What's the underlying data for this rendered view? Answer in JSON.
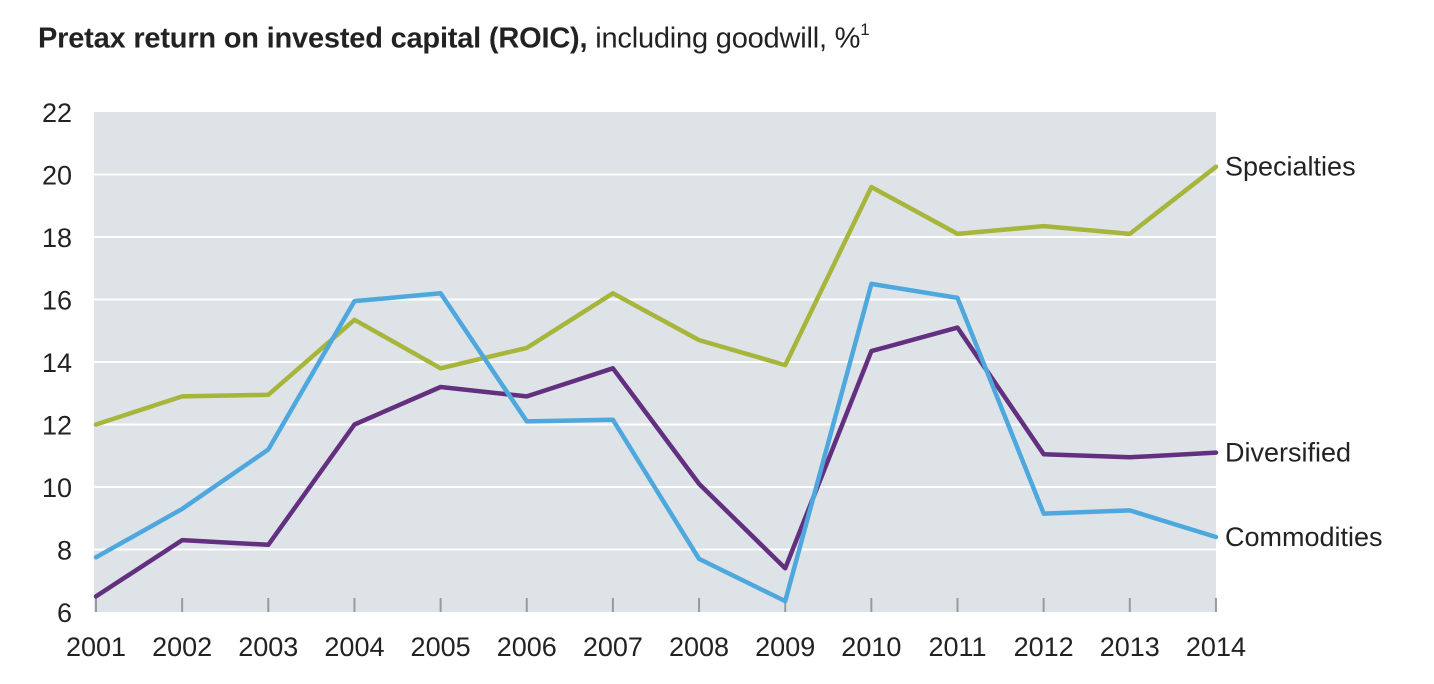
{
  "chart_data": {
    "type": "line",
    "title_bold": "Pretax return on invested capital (ROIC),",
    "title_rest": " including goodwill, %",
    "title_footnote": "1",
    "x": [
      "2001",
      "2002",
      "2003",
      "2004",
      "2005",
      "2006",
      "2007",
      "2008",
      "2009",
      "2010",
      "2011",
      "2012",
      "2013",
      "2014"
    ],
    "ylim": [
      6,
      22
    ],
    "yticks": [
      6,
      8,
      10,
      12,
      14,
      16,
      18,
      20,
      22
    ],
    "grid": true,
    "series": [
      {
        "name": "Specialties",
        "color": "#A7B53A",
        "values": [
          12.0,
          12.9,
          12.95,
          15.35,
          13.8,
          14.45,
          16.2,
          14.7,
          13.9,
          19.6,
          18.1,
          18.35,
          18.1,
          20.25
        ]
      },
      {
        "name": "Diversified",
        "color": "#632F7F",
        "values": [
          6.5,
          8.3,
          8.15,
          12.0,
          13.2,
          12.9,
          13.8,
          10.1,
          7.4,
          14.35,
          15.1,
          11.05,
          10.95,
          11.1
        ]
      },
      {
        "name": "Commodities",
        "color": "#4EA8DE",
        "values": [
          7.75,
          9.3,
          11.2,
          15.95,
          16.2,
          12.1,
          12.15,
          7.7,
          6.35,
          16.5,
          16.05,
          9.15,
          9.25,
          8.4
        ]
      }
    ]
  }
}
